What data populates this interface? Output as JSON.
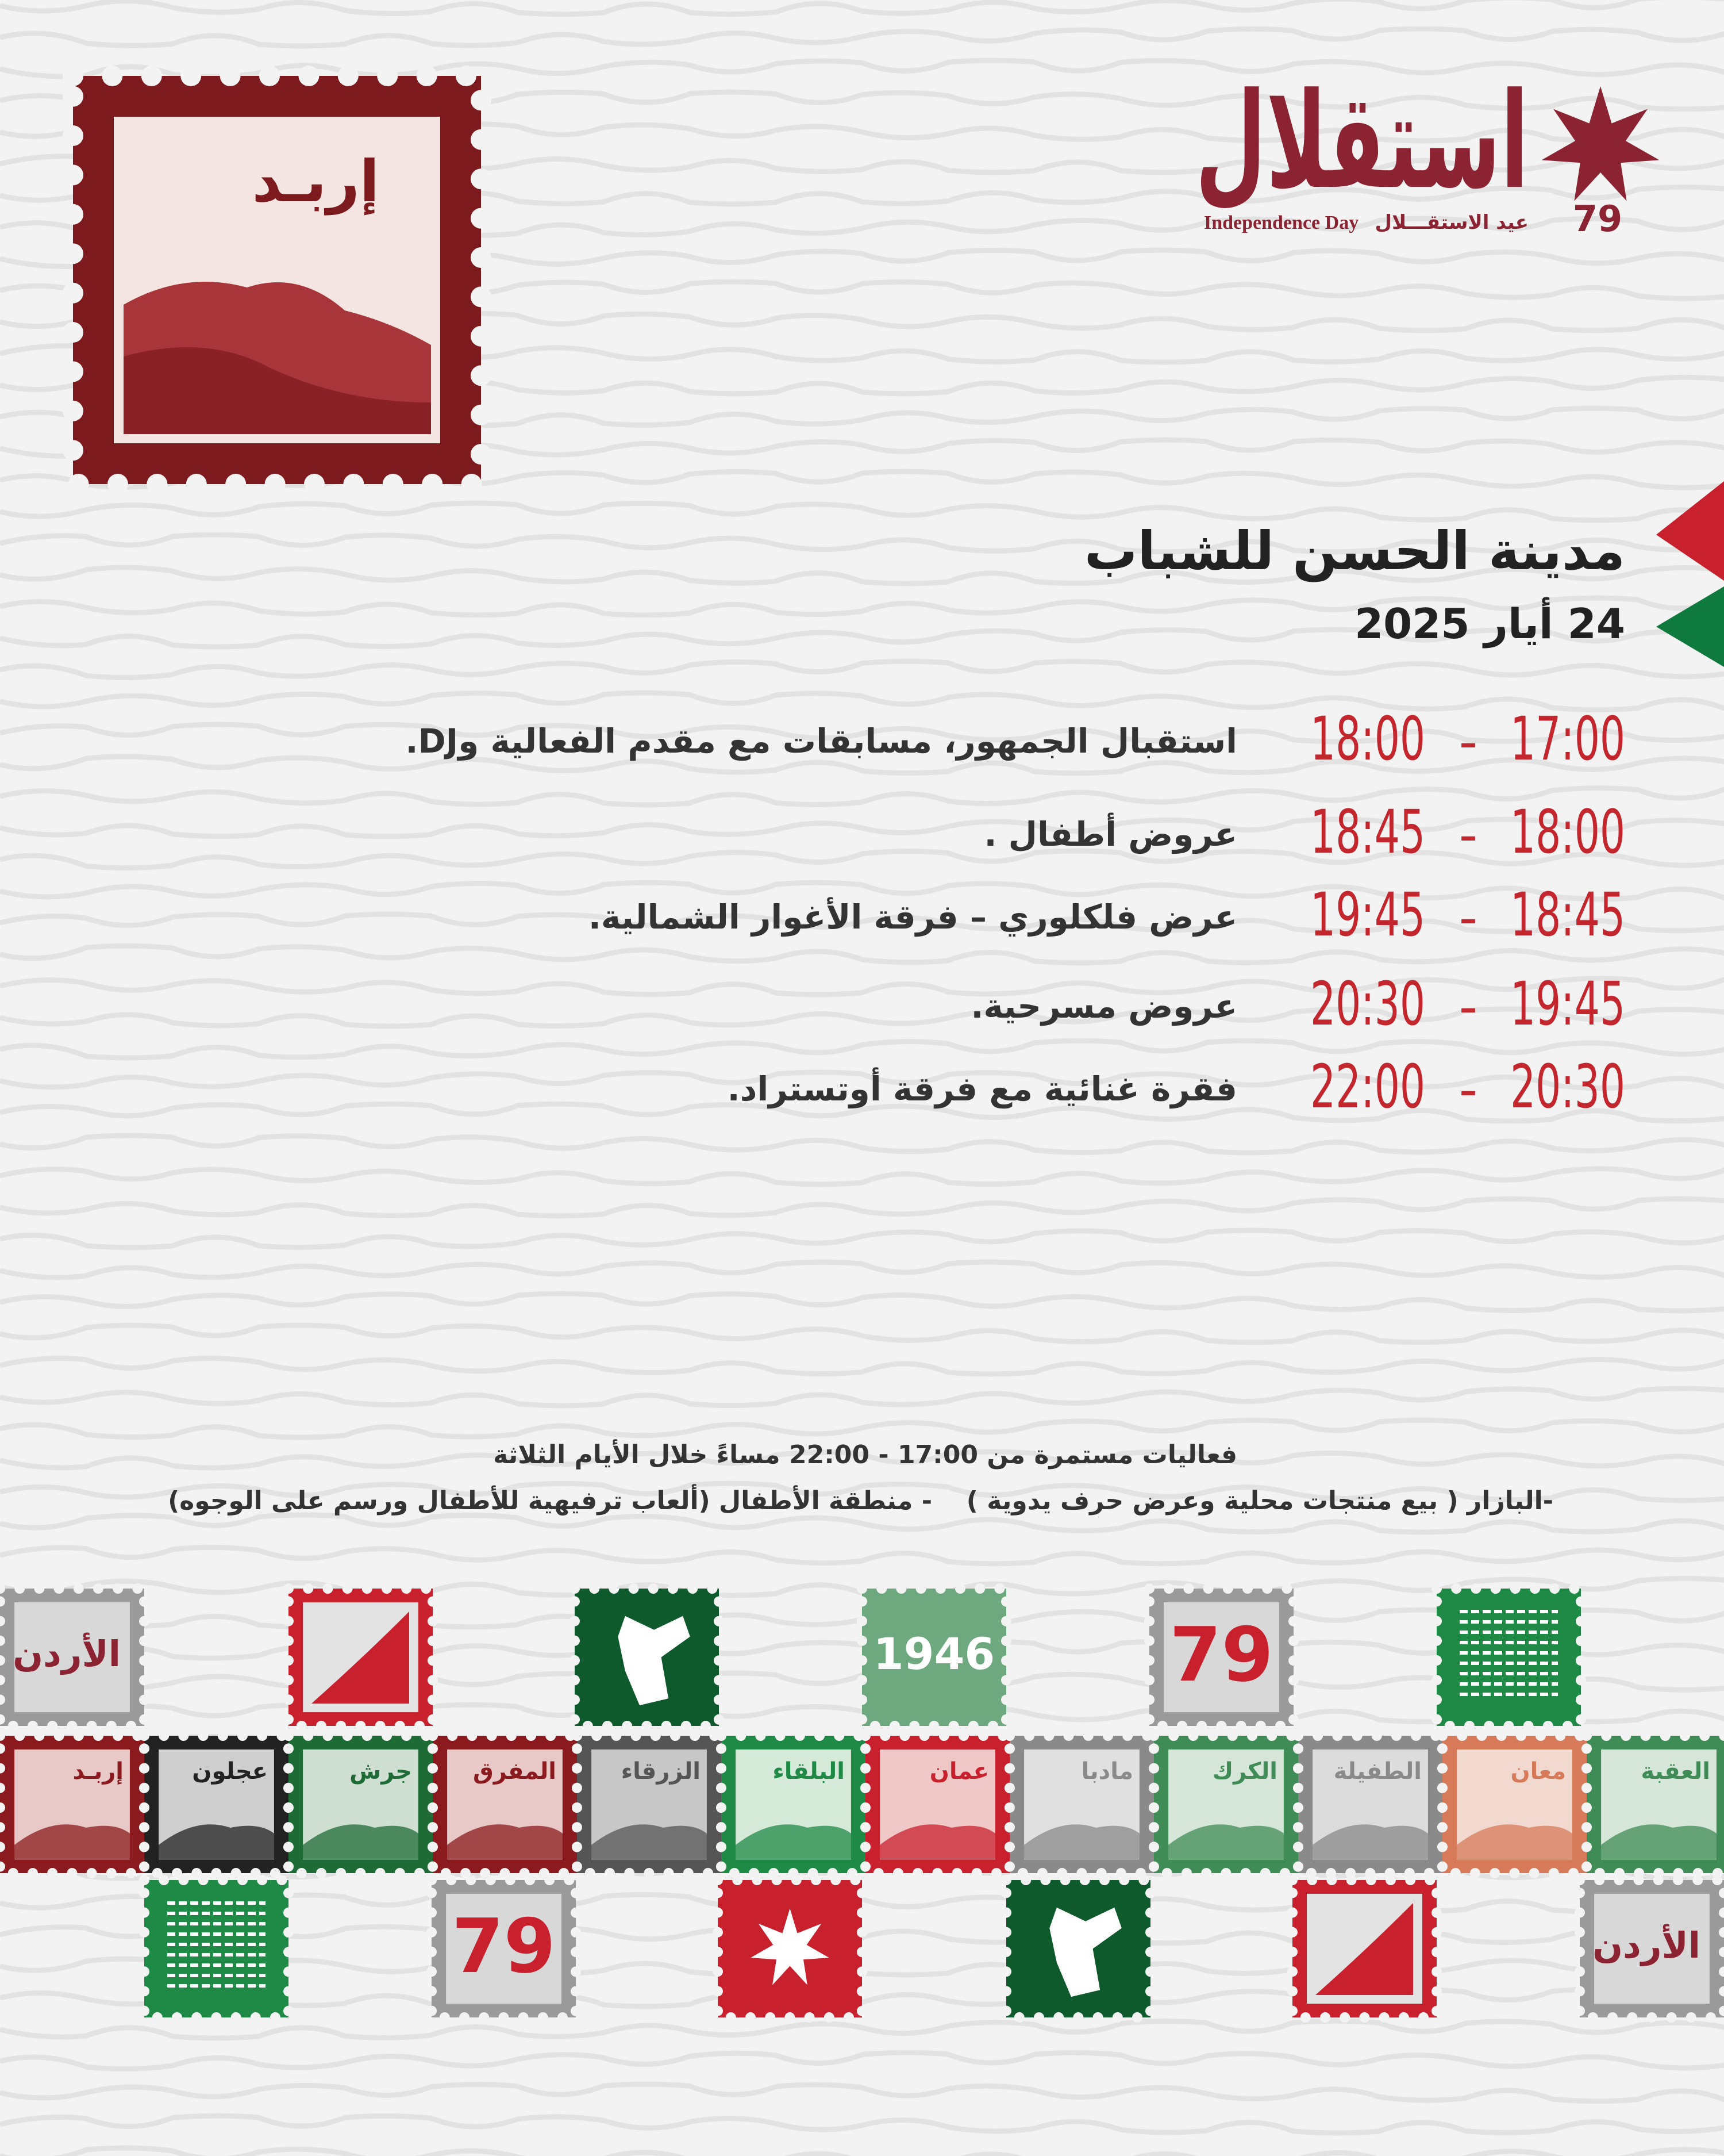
{
  "logo": {
    "wordmark": "استقلال",
    "tagline_en": "Independence Day",
    "tagline_ar": "عيد الاستقـــلال",
    "number": "79"
  },
  "stamp": {
    "label": "إربـد"
  },
  "event": {
    "venue": "مدينة الحسن للشباب",
    "date": "24 أيار 2025"
  },
  "schedule": {
    "separator": "-",
    "rows": [
      {
        "from": "17:00",
        "to": "18:00",
        "activity": "استقبال الجمهور، مسابقات مع مقدم الفعالية وDJ."
      },
      {
        "from": "18:00",
        "to": "18:45",
        "activity": "عروض أطفال ."
      },
      {
        "from": "18:45",
        "to": "19:45",
        "activity": "عرض فلكلوري – فرقة الأغوار الشمالية."
      },
      {
        "from": "19:45",
        "to": "20:30",
        "activity": "عروض مسرحية."
      },
      {
        "from": "20:30",
        "to": "22:00",
        "activity": "فقرة غنائية مع فرقة أوتستراد."
      }
    ]
  },
  "notes": {
    "hours": "فعاليات مستمرة من 17:00 - 22:00 مساءً خلال الأيام الثلاثة",
    "items": [
      "-البازار ( بيع منتجات محلية وعرض حرف يدوية )",
      "- منطقة الأطفال (ألعاب ترفيهية للأطفال ورسم على الوجوه)"
    ]
  },
  "stamps": {
    "country": "الأردن",
    "year": "1946",
    "cities": [
      "إربـد",
      "عجلون",
      "جرش",
      "المفرق",
      "الزرقاء",
      "البلقاء",
      "عمان",
      "مادبا",
      "الكرك",
      "الطفيلة",
      "معان",
      "العقبة"
    ]
  }
}
